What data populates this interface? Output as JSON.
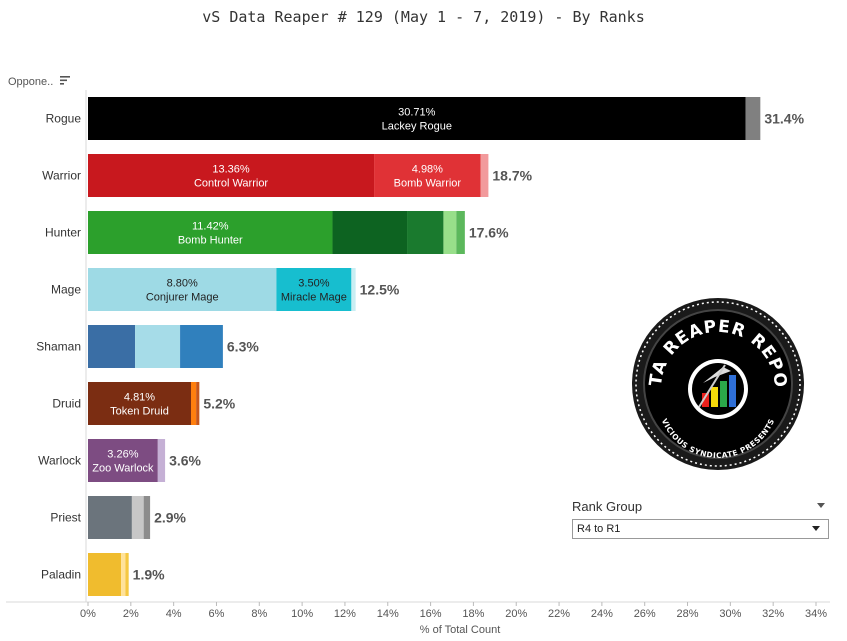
{
  "title": "vS Data Reaper #  129 (May 1 - 7, 2019) - By Ranks",
  "row_header": "Oppone..",
  "logo": {
    "text_top": "DATA REAPER REPORT",
    "text_bottom": "VICIOUS SYNDICATE PRESENTS"
  },
  "filter": {
    "title": "Rank Group",
    "value": "R4 to R1"
  },
  "chart_data": {
    "type": "bar",
    "orientation": "horizontal",
    "stacked": true,
    "xlabel": "% of Total Count",
    "xlim": [
      0,
      34
    ],
    "ticks": [
      0,
      2,
      4,
      6,
      8,
      10,
      12,
      14,
      16,
      18,
      20,
      22,
      24,
      26,
      28,
      30,
      32,
      34
    ],
    "tick_labels": [
      "0%",
      "2%",
      "4%",
      "6%",
      "8%",
      "10%",
      "12%",
      "14%",
      "16%",
      "18%",
      "20%",
      "22%",
      "24%",
      "26%",
      "28%",
      "30%",
      "32%",
      "34%"
    ],
    "categories": [
      "Rogue",
      "Warrior",
      "Hunter",
      "Mage",
      "Shaman",
      "Druid",
      "Warlock",
      "Priest",
      "Paladin"
    ],
    "totals": [
      "31.4%",
      "18.7%",
      "17.6%",
      "12.5%",
      "6.3%",
      "5.2%",
      "3.6%",
      "2.9%",
      "1.9%"
    ],
    "bars": [
      {
        "segments": [
          {
            "value": 30.71,
            "color": "#000000",
            "pct": "30.71%",
            "name": "Lackey Rogue",
            "text_color": "#ffffff"
          },
          {
            "value": 0.69,
            "color": "#808080"
          }
        ]
      },
      {
        "segments": [
          {
            "value": 13.36,
            "color": "#c8181e",
            "pct": "13.36%",
            "name": "Control Warrior",
            "text_color": "#ffffff"
          },
          {
            "value": 4.98,
            "color": "#e03236",
            "pct": "4.98%",
            "name": "Bomb Warrior",
            "text_color": "#ffffff"
          },
          {
            "value": 0.36,
            "color": "#f29a9c"
          }
        ]
      },
      {
        "segments": [
          {
            "value": 11.42,
            "color": "#2ca02c",
            "pct": "11.42%",
            "name": "Bomb Hunter",
            "text_color": "#ffffff"
          },
          {
            "value": 3.48,
            "color": "#0d6321"
          },
          {
            "value": 1.7,
            "color": "#1a7a2e"
          },
          {
            "value": 0.6,
            "color": "#98df8a"
          },
          {
            "value": 0.4,
            "color": "#5cb85c"
          }
        ]
      },
      {
        "segments": [
          {
            "value": 8.8,
            "color": "#9edae5",
            "pct": "8.80%",
            "name": "Conjurer Mage",
            "text_color": "#222222"
          },
          {
            "value": 3.5,
            "color": "#17becf",
            "pct": "3.50%",
            "name": "Miracle Mage",
            "text_color": "#222222"
          },
          {
            "value": 0.2,
            "color": "#c9eef3"
          }
        ]
      },
      {
        "segments": [
          {
            "value": 2.2,
            "color": "#3a6ea5"
          },
          {
            "value": 2.1,
            "color": "#a6dce8"
          },
          {
            "value": 2.0,
            "color": "#3080bd"
          }
        ]
      },
      {
        "segments": [
          {
            "value": 4.81,
            "color": "#7b2d12",
            "pct": "4.81%",
            "name": "Token Druid",
            "text_color": "#ffffff"
          },
          {
            "value": 0.24,
            "color": "#ff7f0e"
          },
          {
            "value": 0.15,
            "color": "#c8561a"
          }
        ]
      },
      {
        "segments": [
          {
            "value": 3.26,
            "color": "#7d4c82",
            "pct": "3.26%",
            "name": "Zoo Warlock",
            "text_color": "#ffffff"
          },
          {
            "value": 0.34,
            "color": "#c5b0d5"
          }
        ]
      },
      {
        "segments": [
          {
            "value": 2.05,
            "color": "#6b747c"
          },
          {
            "value": 0.55,
            "color": "#c7c7c7"
          },
          {
            "value": 0.3,
            "color": "#8c8c8c"
          }
        ]
      },
      {
        "segments": [
          {
            "value": 1.55,
            "color": "#f0bc2e"
          },
          {
            "value": 0.2,
            "color": "#ffe29a"
          },
          {
            "value": 0.15,
            "color": "#f5c842"
          }
        ]
      }
    ]
  }
}
